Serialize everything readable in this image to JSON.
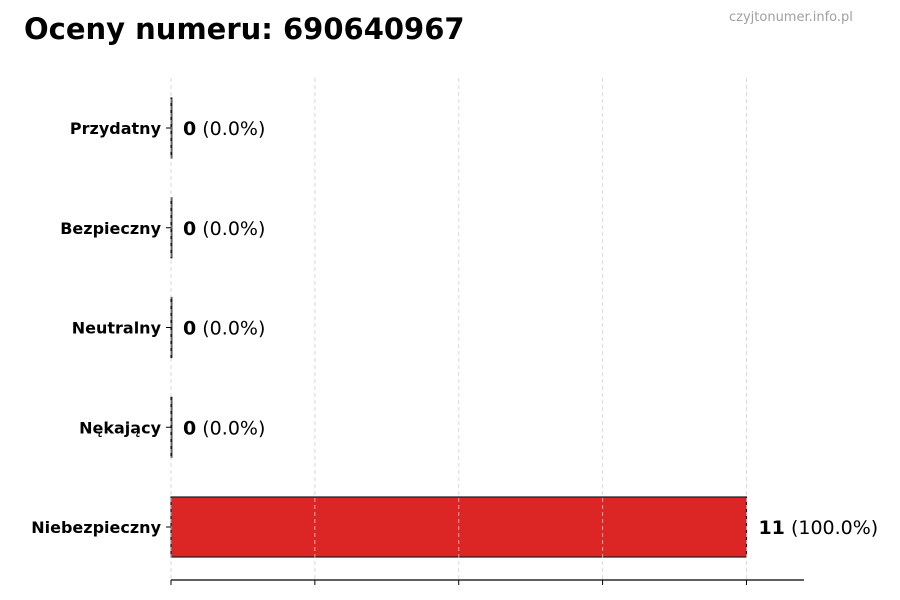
{
  "chart_data": {
    "type": "bar",
    "orientation": "horizontal",
    "title": "Oceny numeru: 690640967",
    "watermark": "czyjtonumer.info.pl",
    "categories": [
      "Przydatny",
      "Bezpieczny",
      "Neutralny",
      "Nękający",
      "Niebezpieczny"
    ],
    "values": [
      0,
      0,
      0,
      0,
      11
    ],
    "percent_labels": [
      "(0.0%)",
      "(0.0%)",
      "(0.0%)",
      "(0.0%)",
      "(100.0%)"
    ],
    "xlim": [
      0,
      12.1
    ],
    "xticks": [
      0,
      2.75,
      5.5,
      8.25,
      11
    ],
    "grid": "vertical dashed",
    "xlabel": "",
    "ylabel": "",
    "colors": {
      "bar": "#dc2626",
      "edge": "#1a1a1a",
      "grid": "#d0d0d0"
    }
  }
}
